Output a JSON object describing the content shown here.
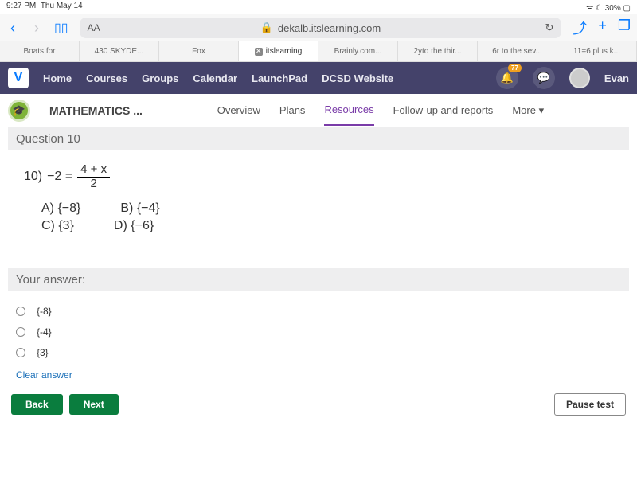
{
  "status": {
    "time": "9:27 PM",
    "date": "Thu May 14",
    "battery": "30%"
  },
  "browser": {
    "url_host": "dekalb.itslearning.com",
    "aa": "AA"
  },
  "tabs": [
    {
      "label": "Boats for"
    },
    {
      "label": "430 SKYDE..."
    },
    {
      "label": "Fox"
    },
    {
      "label": "itslearning",
      "active": true
    },
    {
      "label": "Brainly.com..."
    },
    {
      "label": "2yto the thir..."
    },
    {
      "label": "6r to the sev..."
    },
    {
      "label": "11=6 plus k..."
    }
  ],
  "appnav": {
    "items": [
      "Home",
      "Courses",
      "Groups",
      "Calendar",
      "LaunchPad",
      "DCSD Website"
    ],
    "badge": "77",
    "user": "Evan"
  },
  "subnav": {
    "course": "MATHEMATICS ...",
    "items": [
      "Overview",
      "Plans",
      "Resources",
      "Follow-up and reports",
      "More"
    ],
    "active": "Resources"
  },
  "question": {
    "header": "Question 10",
    "number": "10)",
    "lhs": "−2 =",
    "frac_num": "4 + x",
    "frac_den": "2",
    "choices": {
      "a": "A)  {−8}",
      "b": "B)  {−4}",
      "c": "C)  {3}",
      "d": "D)  {−6}"
    }
  },
  "answer": {
    "header": "Your answer:",
    "options": [
      "{-8}",
      "{-4}",
      "{3}"
    ],
    "clear": "Clear answer"
  },
  "buttons": {
    "back": "Back",
    "next": "Next",
    "pause": "Pause test"
  },
  "colors": {
    "navbg": "#44426a",
    "accent": "#7a3ca8",
    "green": "#0a7d3e"
  }
}
